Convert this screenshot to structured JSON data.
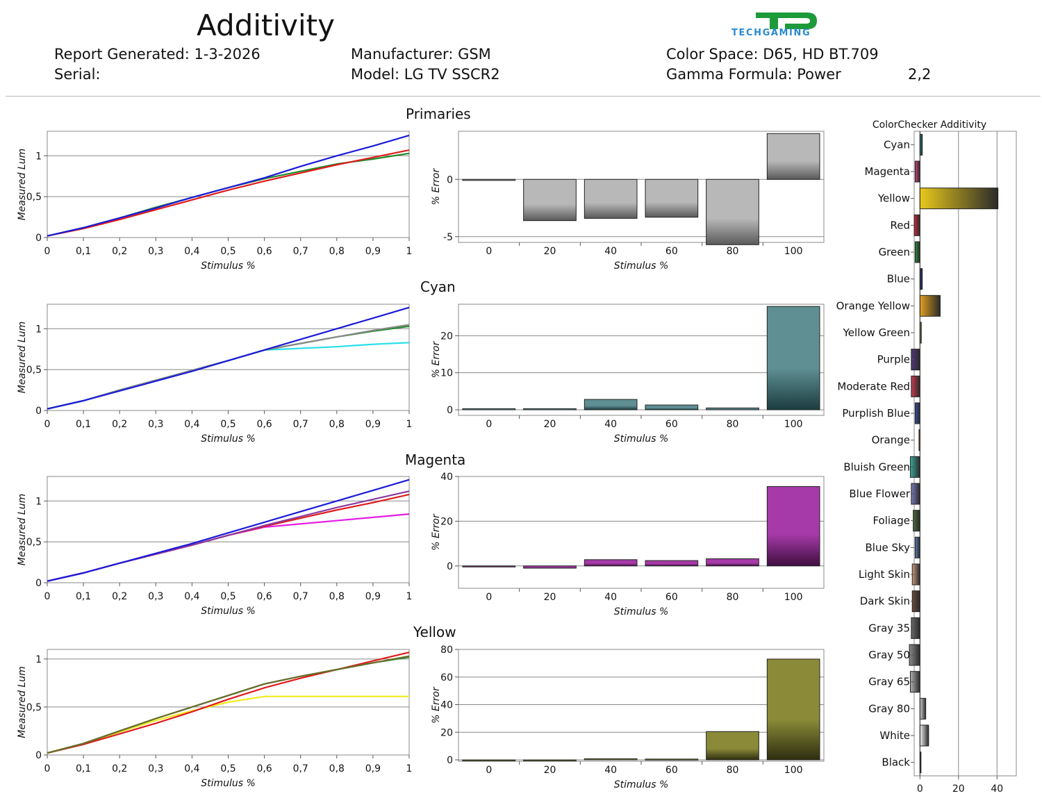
{
  "header": {
    "title": "Additivity",
    "report_generated": "Report Generated: 1-3-2026",
    "serial": "Serial:",
    "manufacturer": "Manufacturer: GSM",
    "model": "Model: LG TV SSCR2",
    "color_space": "Color Space: D65, HD BT.709",
    "gamma_formula": "Gamma Formula: Power",
    "gamma_value": "2,2",
    "logo_text": "TECHGAMING"
  },
  "chart_data": [
    {
      "type": "line",
      "section_title": "Primaries",
      "xlabel": "Stimulus %",
      "ylabel": "Measured Lum",
      "xlim": [
        0,
        1
      ],
      "ylim": [
        0,
        1.3
      ],
      "x_ticks": [
        "0",
        "0,1",
        "0,2",
        "0,3",
        "0,4",
        "0,5",
        "0,6",
        "0,7",
        "0,8",
        "0,9",
        "1"
      ],
      "y_ticks": [
        {
          "v": 0,
          "label": "0"
        },
        {
          "v": 0.5,
          "label": "0,5"
        },
        {
          "v": 1,
          "label": "1"
        }
      ],
      "x": [
        0,
        0.1,
        0.2,
        0.3,
        0.4,
        0.5,
        0.6,
        0.7,
        0.8,
        0.9,
        1
      ],
      "series": [
        {
          "color": "#1f8a2a",
          "values": [
            0.02,
            0.12,
            0.24,
            0.37,
            0.49,
            0.61,
            0.72,
            0.81,
            0.9,
            0.96,
            1.03
          ]
        },
        {
          "color": "#e01b1b",
          "values": [
            0.02,
            0.11,
            0.22,
            0.34,
            0.46,
            0.58,
            0.69,
            0.79,
            0.89,
            0.98,
            1.07
          ]
        },
        {
          "color": "#1a1ad8",
          "values": [
            0.02,
            0.12,
            0.24,
            0.36,
            0.49,
            0.61,
            0.73,
            0.87,
            1.0,
            1.12,
            1.25
          ]
        }
      ]
    },
    {
      "type": "bar",
      "xlabel": "Stimulus %",
      "ylabel": "% Error",
      "categories": [
        "0",
        "20",
        "40",
        "60",
        "80",
        "100"
      ],
      "values": [
        0,
        -3.6,
        -3.4,
        -3.3,
        -5.7,
        4.0
      ],
      "ylim": [
        -5.5,
        4.2
      ],
      "y_ticks": [
        {
          "v": -5,
          "label": "-5"
        },
        {
          "v": 0,
          "label": "0"
        }
      ],
      "color_top": "#b8b8b8",
      "color_bottom": "#5a5a5a"
    },
    {
      "type": "line",
      "section_title": "Cyan",
      "xlabel": "Stimulus %",
      "ylabel": "Measured Lum",
      "xlim": [
        0,
        1
      ],
      "ylim": [
        0,
        1.3
      ],
      "x_ticks": [
        "0",
        "0,1",
        "0,2",
        "0,3",
        "0,4",
        "0,5",
        "0,6",
        "0,7",
        "0,8",
        "0,9",
        "1"
      ],
      "y_ticks": [
        {
          "v": 0,
          "label": "0"
        },
        {
          "v": 0.5,
          "label": "0,5"
        },
        {
          "v": 1,
          "label": "1"
        }
      ],
      "x": [
        0,
        0.1,
        0.2,
        0.3,
        0.4,
        0.5,
        0.6,
        0.7,
        0.8,
        0.9,
        1
      ],
      "series": [
        {
          "color": "#22e0e8",
          "values": [
            0.02,
            0.12,
            0.25,
            0.37,
            0.49,
            0.61,
            0.74,
            0.76,
            0.78,
            0.81,
            0.83
          ]
        },
        {
          "color": "#1f8a2a",
          "values": [
            0.02,
            0.12,
            0.25,
            0.37,
            0.49,
            0.61,
            0.74,
            0.82,
            0.9,
            0.97,
            1.03
          ]
        },
        {
          "color": "#8a8a8a",
          "values": [
            0.02,
            0.12,
            0.25,
            0.37,
            0.49,
            0.61,
            0.74,
            0.82,
            0.9,
            0.98,
            1.05
          ]
        },
        {
          "color": "#1a1ad8",
          "values": [
            0.02,
            0.12,
            0.24,
            0.36,
            0.48,
            0.61,
            0.74,
            0.87,
            1.0,
            1.13,
            1.26
          ]
        }
      ]
    },
    {
      "type": "bar",
      "xlabel": "Stimulus %",
      "ylabel": "% Error",
      "categories": [
        "0",
        "20",
        "40",
        "60",
        "80",
        "100"
      ],
      "values": [
        0.3,
        0.3,
        2.8,
        1.3,
        0.5,
        27.9
      ],
      "ylim": [
        -1.5,
        28.5
      ],
      "y_ticks": [
        {
          "v": 0,
          "label": "0"
        },
        {
          "v": 10,
          "label": "10"
        },
        {
          "v": 20,
          "label": "20"
        }
      ],
      "color_top": "#5f8f92",
      "color_bottom": "#1b3c3f"
    },
    {
      "type": "line",
      "section_title": "Magenta",
      "xlabel": "Stimulus %",
      "ylabel": "Measured Lum",
      "xlim": [
        0,
        1
      ],
      "ylim": [
        0,
        1.3
      ],
      "x_ticks": [
        "0",
        "0,1",
        "0,2",
        "0,3",
        "0,4",
        "0,5",
        "0,6",
        "0,7",
        "0,8",
        "0,9",
        "1"
      ],
      "y_ticks": [
        {
          "v": 0,
          "label": "0"
        },
        {
          "v": 0.5,
          "label": "0,5"
        },
        {
          "v": 1,
          "label": "1"
        }
      ],
      "x": [
        0,
        0.1,
        0.2,
        0.3,
        0.4,
        0.5,
        0.6,
        0.7,
        0.8,
        0.9,
        1
      ],
      "series": [
        {
          "color": "#e51be5",
          "values": [
            0.02,
            0.12,
            0.24,
            0.35,
            0.46,
            0.58,
            0.68,
            0.72,
            0.76,
            0.8,
            0.84
          ]
        },
        {
          "color": "#e01b1b",
          "values": [
            0.02,
            0.12,
            0.24,
            0.35,
            0.46,
            0.58,
            0.69,
            0.79,
            0.89,
            0.98,
            1.08
          ]
        },
        {
          "color": "#8a3aa0",
          "values": [
            0.02,
            0.12,
            0.24,
            0.35,
            0.46,
            0.58,
            0.7,
            0.81,
            0.92,
            1.02,
            1.12
          ]
        },
        {
          "color": "#1a1ad8",
          "values": [
            0.02,
            0.12,
            0.24,
            0.36,
            0.48,
            0.61,
            0.74,
            0.87,
            1.0,
            1.13,
            1.26
          ]
        }
      ]
    },
    {
      "type": "bar",
      "xlabel": "Stimulus %",
      "ylabel": "% Error",
      "categories": [
        "0",
        "20",
        "40",
        "60",
        "80",
        "100"
      ],
      "values": [
        0,
        -1,
        2.8,
        2.4,
        3.2,
        35.5
      ],
      "ylim": [
        -10,
        40
      ],
      "y_ticks": [
        {
          "v": 0,
          "label": "0"
        },
        {
          "v": 20,
          "label": "20"
        },
        {
          "v": 40,
          "label": "40"
        }
      ],
      "color_top": "#a63aa8",
      "color_bottom": "#3f0f40"
    },
    {
      "type": "line",
      "section_title": "Yellow",
      "xlabel": "Stimulus %",
      "ylabel": "Measured Lum",
      "xlim": [
        0,
        1
      ],
      "ylim": [
        0,
        1.1
      ],
      "x_ticks": [
        "0",
        "0,1",
        "0,2",
        "0,3",
        "0,4",
        "0,5",
        "0,6",
        "0,7",
        "0,8",
        "0,9",
        "1"
      ],
      "y_ticks": [
        {
          "v": 0,
          "label": "0"
        },
        {
          "v": 0.5,
          "label": "0,5"
        },
        {
          "v": 1,
          "label": "1"
        }
      ],
      "x": [
        0,
        0.1,
        0.2,
        0.3,
        0.4,
        0.5,
        0.6,
        0.7,
        0.8,
        0.9,
        1
      ],
      "series": [
        {
          "color": "#f0ec1a",
          "values": [
            0.02,
            0.12,
            0.24,
            0.36,
            0.46,
            0.55,
            0.61,
            0.61,
            0.61,
            0.61,
            0.61
          ]
        },
        {
          "color": "#e01b1b",
          "values": [
            0.02,
            0.11,
            0.22,
            0.33,
            0.45,
            0.58,
            0.7,
            0.8,
            0.89,
            0.98,
            1.07
          ]
        },
        {
          "color": "#1f8a2a",
          "values": [
            0.02,
            0.12,
            0.25,
            0.38,
            0.5,
            0.62,
            0.74,
            0.82,
            0.89,
            0.96,
            1.02
          ]
        },
        {
          "color": "#6b6b2a",
          "values": [
            0.02,
            0.12,
            0.25,
            0.38,
            0.5,
            0.62,
            0.74,
            0.82,
            0.89,
            0.96,
            1.03
          ]
        }
      ]
    },
    {
      "type": "bar",
      "xlabel": "Stimulus %",
      "ylabel": "% Error",
      "categories": [
        "0",
        "20",
        "40",
        "60",
        "80",
        "100"
      ],
      "values": [
        0,
        0,
        0.8,
        0.6,
        20.5,
        73
      ],
      "ylim": [
        -1,
        80
      ],
      "y_ticks": [
        {
          "v": 0,
          "label": "0"
        },
        {
          "v": 20,
          "label": "20"
        },
        {
          "v": 40,
          "label": "40"
        },
        {
          "v": 60,
          "label": "60"
        },
        {
          "v": 80,
          "label": "80"
        }
      ],
      "color_top": "#8a8a38",
      "color_bottom": "#2e2e10"
    },
    {
      "type": "bar",
      "orientation": "horizontal",
      "title": "ColorChecker Additivity",
      "categories": [
        "Cyan",
        "Magenta",
        "Yellow",
        "Red",
        "Green",
        "Blue",
        "Orange Yellow",
        "Yellow Green",
        "Purple",
        "Moderate Red",
        "Purplish Blue",
        "Orange",
        "Bluish Green",
        "Blue Flower",
        "Foliage",
        "Blue Sky",
        "Light Skin",
        "Dark Skin",
        "Gray 35",
        "Gray 50",
        "Gray 65",
        "Gray 80",
        "White",
        "Black"
      ],
      "values": [
        1.2,
        -2.5,
        40.5,
        -3,
        -2.5,
        1.2,
        10.5,
        0.7,
        -4.5,
        -4.5,
        -2.5,
        -0.5,
        -5,
        -4.5,
        -3.5,
        -2.5,
        -4,
        -4,
        -4.5,
        -5.5,
        -5,
        3,
        4.5,
        0
      ],
      "colors": [
        "#1f8a7a",
        "#d0407a",
        "#e8c81a",
        "#c82a3a",
        "#2a8a3a",
        "#1a2a8a",
        "#e0a020",
        "#a0b020",
        "#503a7a",
        "#c83a50",
        "#3a4aa0",
        "#e07a1a",
        "#3aa898",
        "#7a7ab8",
        "#4a6a3a",
        "#5a7ab0",
        "#c89a80",
        "#6a4a3a",
        "#6a6a6a",
        "#8a8a8a",
        "#b0b0b0",
        "#d0d0d0",
        "#f0f0f0",
        "#101010"
      ],
      "xlim": [
        -3,
        50
      ],
      "x_ticks": [
        {
          "v": 0,
          "label": "0"
        },
        {
          "v": 20,
          "label": "20"
        },
        {
          "v": 40,
          "label": "40"
        }
      ]
    }
  ]
}
